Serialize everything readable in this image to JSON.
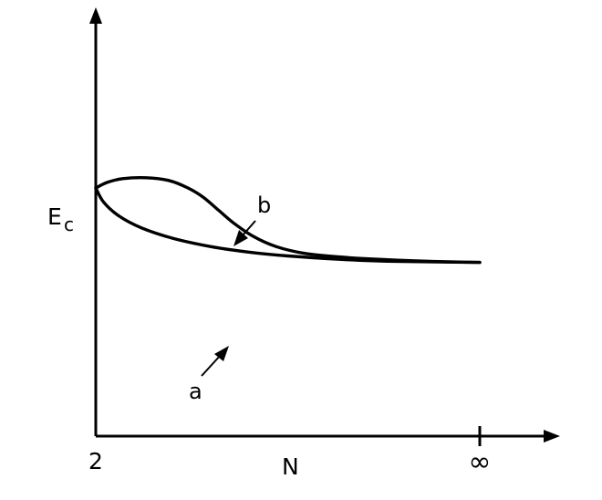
{
  "chart_data": {
    "type": "line",
    "xlabel": "N",
    "ylabel": "E",
    "ylabel_subscript": "c",
    "x_ticks": [
      "2",
      "∞"
    ],
    "series": [
      {
        "name": "a",
        "x": [
          0.0,
          0.02,
          0.06,
          0.12,
          0.2,
          0.3,
          0.4,
          0.5,
          0.65,
          0.8,
          1.0
        ],
        "y": [
          1.0,
          0.85,
          0.7,
          0.57,
          0.46,
          0.37,
          0.31,
          0.27,
          0.23,
          0.21,
          0.2
        ]
      },
      {
        "name": "b",
        "x": [
          0.0,
          0.03,
          0.07,
          0.13,
          0.19,
          0.24,
          0.28,
          0.32,
          0.36,
          0.41,
          0.47,
          0.54,
          0.63,
          0.75,
          0.88,
          1.0
        ],
        "y": [
          1.0,
          1.06,
          1.1,
          1.11,
          1.08,
          1.0,
          0.9,
          0.76,
          0.62,
          0.48,
          0.37,
          0.3,
          0.26,
          0.23,
          0.21,
          0.2
        ]
      }
    ]
  }
}
